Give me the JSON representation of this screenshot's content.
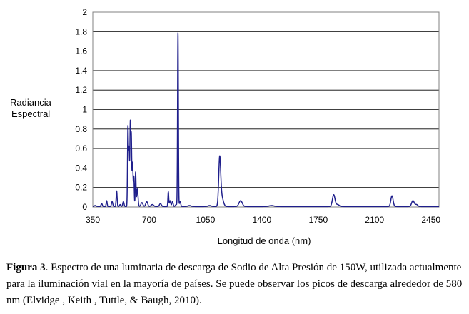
{
  "chart_data": {
    "type": "line",
    "title": "",
    "xlabel": "Longitud de onda (nm)",
    "ylabel": [
      "Radiancia",
      "Espectral"
    ],
    "xlim": [
      350,
      2500
    ],
    "ylim": [
      0,
      2
    ],
    "x_ticks": [
      "350",
      "700",
      "1050",
      "1400",
      "1750",
      "2100",
      "2450"
    ],
    "y_ticks": [
      "0",
      "0.2",
      "0.4",
      "0.6",
      "0.8",
      "1",
      "1.2",
      "1.4",
      "1.6",
      "1.8",
      "2"
    ],
    "grid": "horizontal",
    "line_color": "#1f1f8c",
    "series": [
      {
        "baseline": 0.005,
        "peaks": [
          {
            "x": 365,
            "y": 0.01,
            "w": 6
          },
          {
            "x": 405,
            "y": 0.03,
            "w": 4
          },
          {
            "x": 436,
            "y": 0.06,
            "w": 3
          },
          {
            "x": 470,
            "y": 0.05,
            "w": 4
          },
          {
            "x": 498,
            "y": 0.16,
            "w": 3
          },
          {
            "x": 520,
            "y": 0.02,
            "w": 4
          },
          {
            "x": 540,
            "y": 0.05,
            "w": 4
          },
          {
            "x": 568,
            "y": 0.79,
            "w": 2.5
          },
          {
            "x": 575,
            "y": 0.6,
            "w": 3
          },
          {
            "x": 583,
            "y": 0.83,
            "w": 2.5
          },
          {
            "x": 589,
            "y": 0.7,
            "w": 2.5
          },
          {
            "x": 597,
            "y": 0.45,
            "w": 3
          },
          {
            "x": 605,
            "y": 0.3,
            "w": 2.5
          },
          {
            "x": 616,
            "y": 0.35,
            "w": 2.5
          },
          {
            "x": 627,
            "y": 0.18,
            "w": 4
          },
          {
            "x": 655,
            "y": 0.04,
            "w": 6
          },
          {
            "x": 685,
            "y": 0.05,
            "w": 6
          },
          {
            "x": 720,
            "y": 0.02,
            "w": 8
          },
          {
            "x": 770,
            "y": 0.03,
            "w": 6
          },
          {
            "x": 819,
            "y": 0.15,
            "w": 2.5
          },
          {
            "x": 830,
            "y": 0.06,
            "w": 4
          },
          {
            "x": 845,
            "y": 0.05,
            "w": 4
          },
          {
            "x": 868,
            "y": 0.02,
            "w": 5
          },
          {
            "x": 879,
            "y": 1.78,
            "w": 2.5
          },
          {
            "x": 892,
            "y": 0.05,
            "w": 4
          },
          {
            "x": 950,
            "y": 0.01,
            "w": 10
          },
          {
            "x": 1075,
            "y": 0.01,
            "w": 10
          },
          {
            "x": 1138,
            "y": 0.47,
            "w": 6
          },
          {
            "x": 1150,
            "y": 0.1,
            "w": 10
          },
          {
            "x": 1268,
            "y": 0.06,
            "w": 10
          },
          {
            "x": 1460,
            "y": 0.01,
            "w": 15
          },
          {
            "x": 1846,
            "y": 0.12,
            "w": 8
          },
          {
            "x": 1870,
            "y": 0.02,
            "w": 10
          },
          {
            "x": 2208,
            "y": 0.11,
            "w": 7
          },
          {
            "x": 2338,
            "y": 0.06,
            "w": 8
          },
          {
            "x": 2360,
            "y": 0.02,
            "w": 8
          }
        ]
      }
    ]
  },
  "caption": {
    "label": "Figura 3",
    "text": ". Espectro de una luminaria de descarga de Sodio de Alta Presión de 150W, utilizada actualmente para la iluminación vial en la mayoría de países. Se puede observar los picos de descarga alrededor de 580 nm (Elvidge , Keith , Tuttle, & Baugh, 2010)."
  }
}
